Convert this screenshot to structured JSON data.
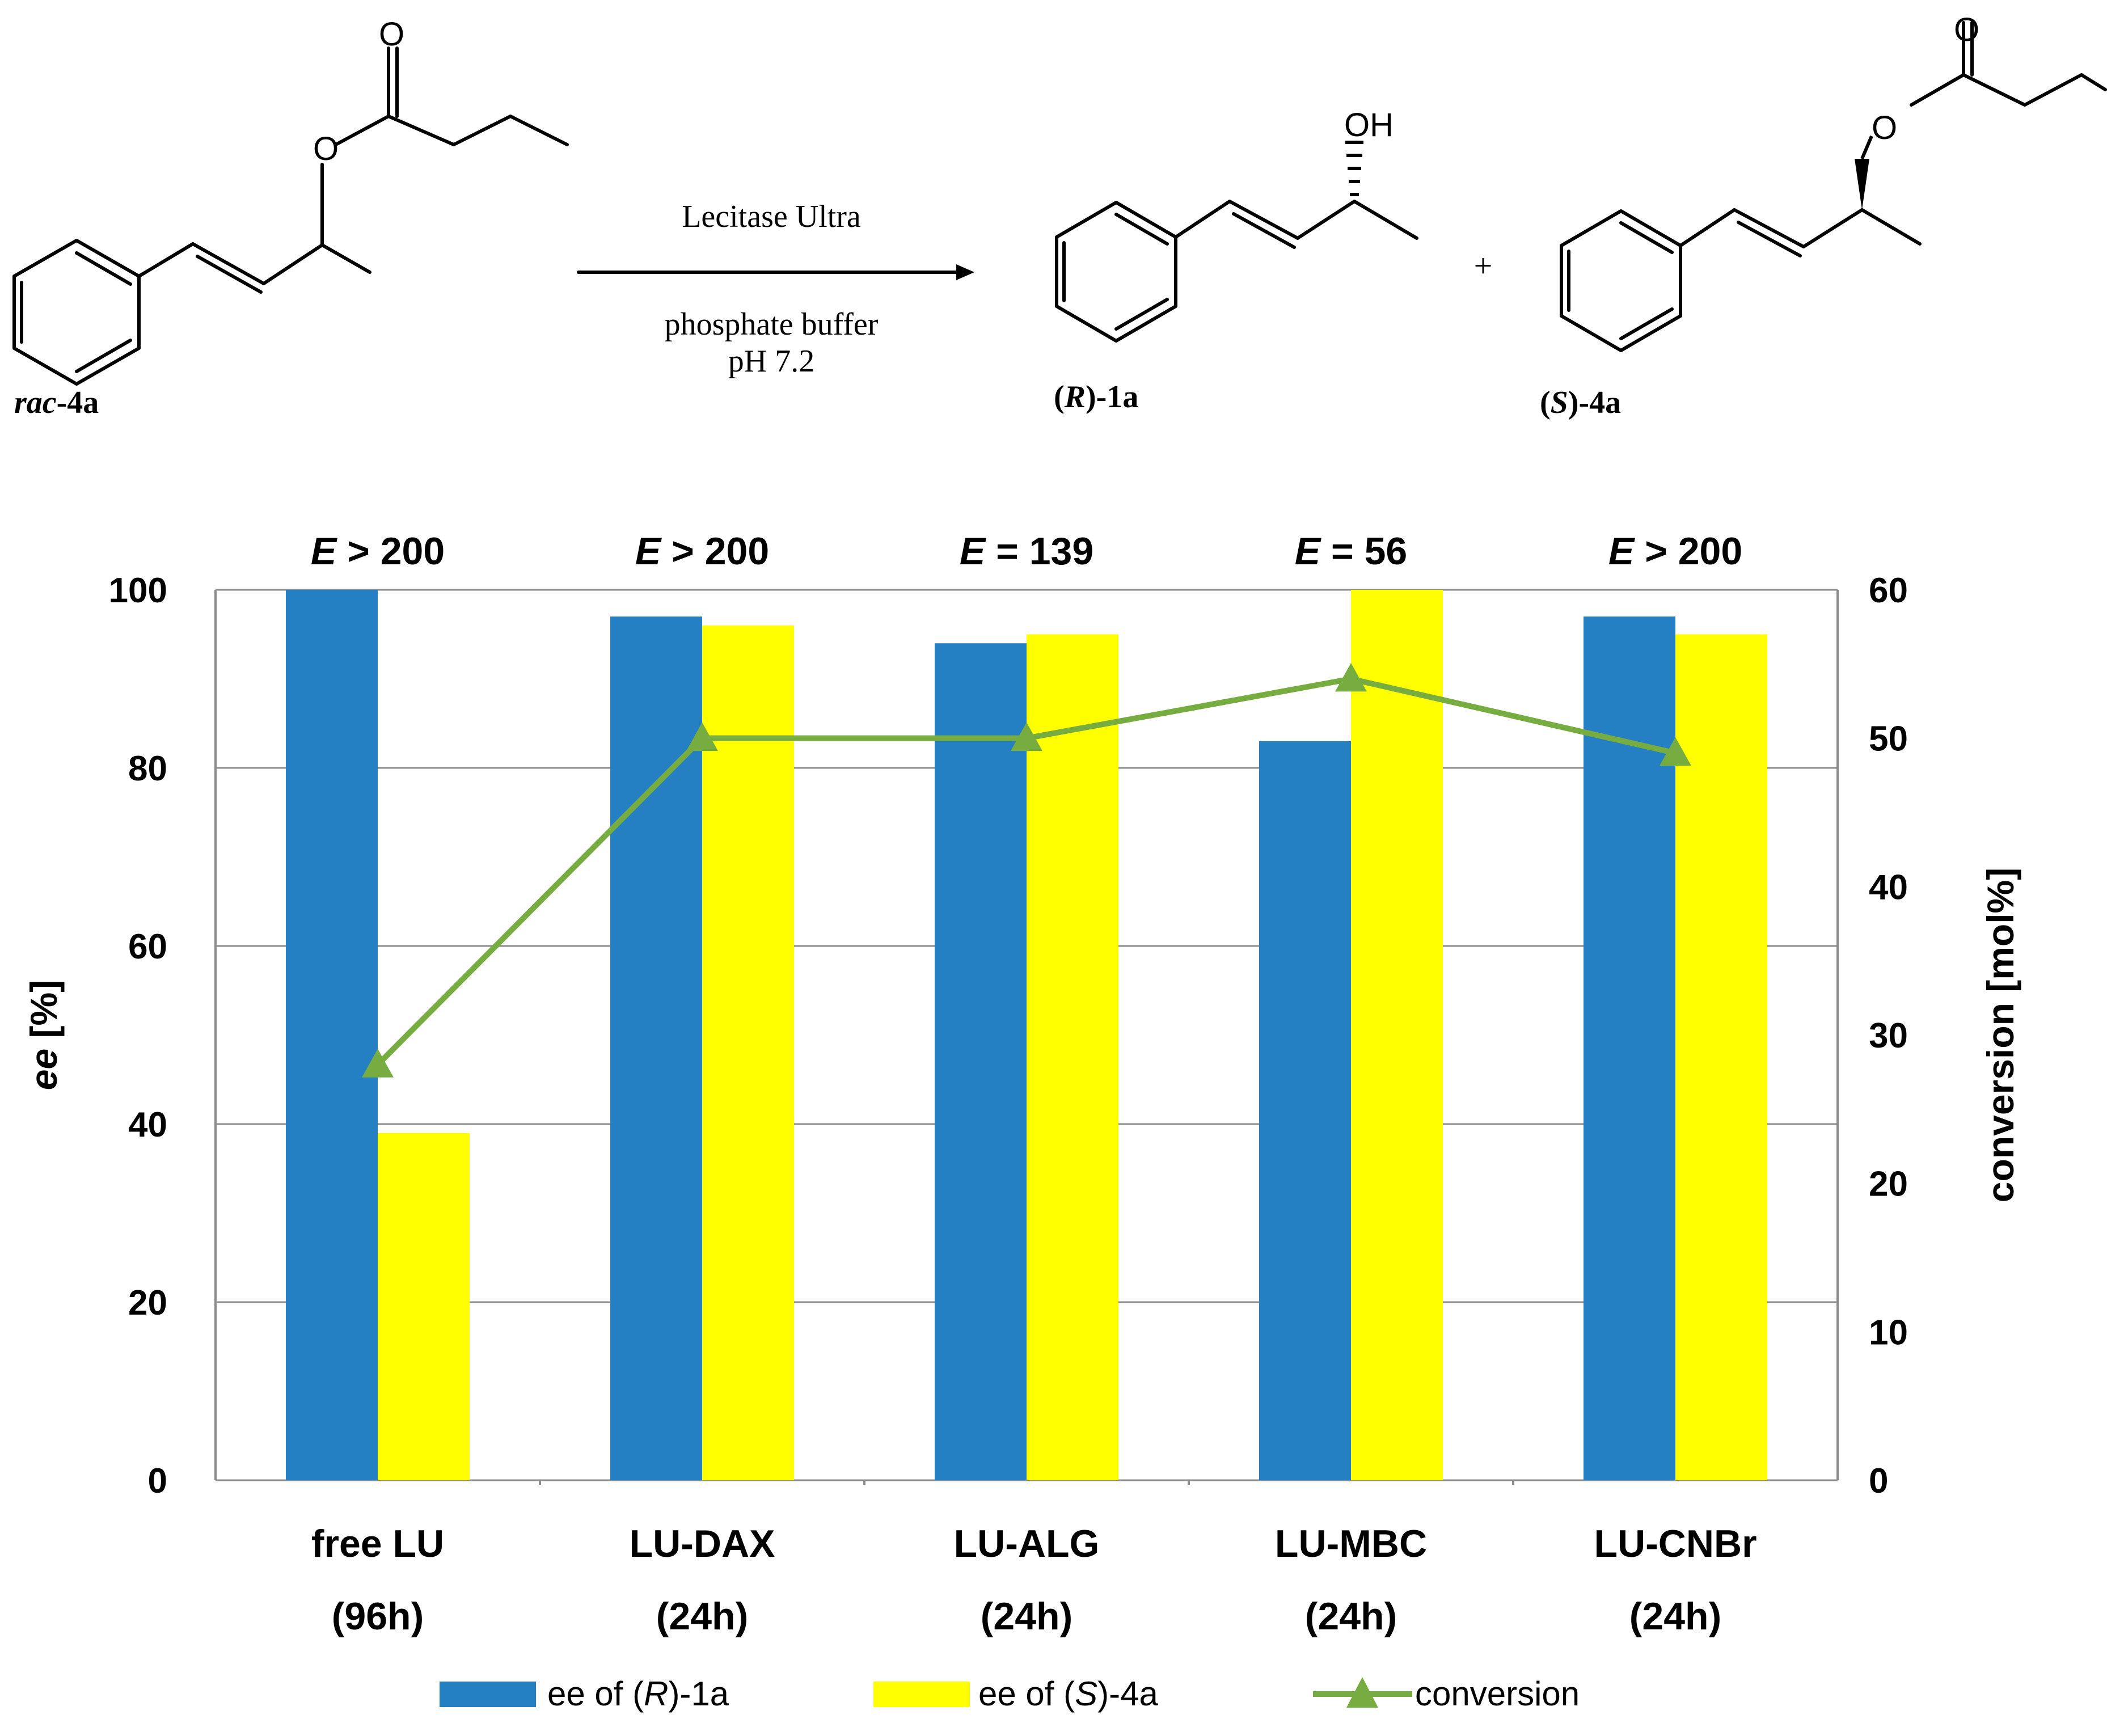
{
  "scheme": {
    "reactant_label_italic": "rac",
    "reactant_label_rest": "-4a",
    "enzyme": "Lecitase Ultra",
    "buffer_line1": "phosphate buffer",
    "buffer_line2": "pH 7.2",
    "plus": "+",
    "oh": "OH",
    "oxygen": "O",
    "product1_open": "(",
    "product1_config": "R",
    "product1_rest": ")-1a",
    "product2_open": "(",
    "product2_config": "S",
    "product2_rest": ")-4a"
  },
  "chart_data": {
    "type": "bar",
    "categories": [
      [
        "free LU",
        "(96h)"
      ],
      [
        "LU-DAX",
        "(24h)"
      ],
      [
        "LU-ALG",
        "(24h)"
      ],
      [
        "LU-MBC",
        "(24h)"
      ],
      [
        "LU-CNBr",
        "(24h)"
      ]
    ],
    "e_labels": [
      {
        "italic": "E",
        "rest": " > 200"
      },
      {
        "italic": "E",
        "rest": " > 200"
      },
      {
        "italic": "E",
        "rest": " = 139"
      },
      {
        "italic": "E",
        "rest": " = 56"
      },
      {
        "italic": "E",
        "rest": " > 200"
      }
    ],
    "series": [
      {
        "name": "ee of (R)-1a",
        "legend_pre": "ee of (",
        "legend_italic": "R",
        "legend_post": ")-1a",
        "axis": "left",
        "color": "#2580c3",
        "values": [
          100,
          97,
          94,
          83,
          97
        ]
      },
      {
        "name": "ee of (S)-4a",
        "legend_pre": "ee of (",
        "legend_italic": "S",
        "legend_post": ")-4a",
        "axis": "left",
        "color": "#ffff00",
        "values": [
          39,
          96,
          95,
          100,
          95
        ]
      },
      {
        "name": "conversion",
        "legend_pre": "conversion",
        "axis": "right",
        "type": "line",
        "color": "#77ac41",
        "values": [
          28,
          50,
          50,
          54,
          49
        ]
      }
    ],
    "ylabel_italic": "ee",
    "ylabel_rest": " [%]",
    "y2label": "conversion [mol%]",
    "ylim": [
      0,
      100
    ],
    "y2lim": [
      0,
      60
    ],
    "yticks": [
      "0",
      "20",
      "40",
      "60",
      "80",
      "100"
    ],
    "y2ticks": [
      "0",
      "10",
      "20",
      "30",
      "40",
      "50",
      "60"
    ],
    "grid": true,
    "legend": "bottom"
  }
}
